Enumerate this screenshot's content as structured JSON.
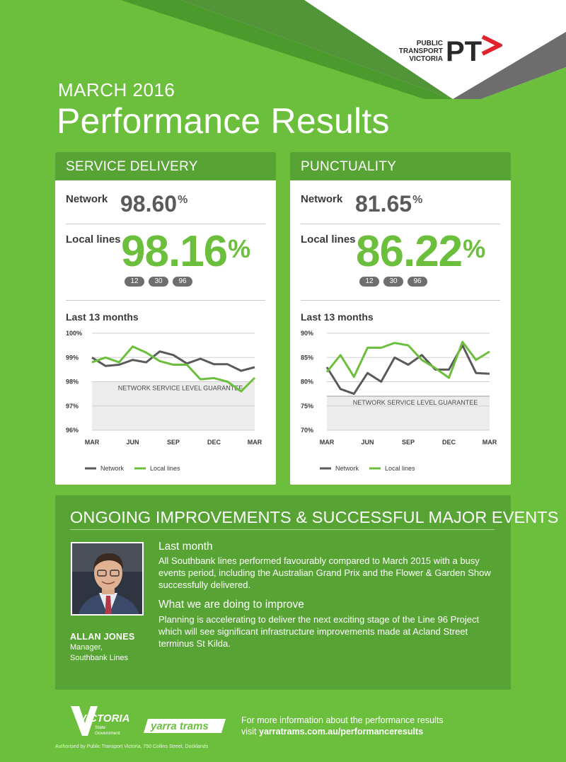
{
  "logo": {
    "ptv_lines": [
      "PUBLIC",
      "TRANSPORT",
      "VICTORIA"
    ],
    "ptv_mark": "PT"
  },
  "header": {
    "month": "MARCH 2016",
    "title": "Performance Results"
  },
  "service_delivery": {
    "heading": "SERVICE DELIVERY",
    "network_label": "Network",
    "network_value": "98.60",
    "local_label": "Local lines",
    "local_value": "98.16",
    "percent": "%",
    "lines": [
      "12",
      "30",
      "96"
    ],
    "months_label": "Last 13 months"
  },
  "punctuality": {
    "heading": "PUNCTUALITY",
    "network_label": "Network",
    "network_value": "81.65",
    "local_label": "Local lines",
    "local_value": "86.22",
    "percent": "%",
    "lines": [
      "12",
      "30",
      "96"
    ],
    "months_label": "Last 13 months"
  },
  "chart_data": [
    {
      "type": "line",
      "x_ticks": [
        "MAR",
        "JUN",
        "SEP",
        "DEC",
        "MAR"
      ],
      "y_ticks": [
        "100%",
        "99%",
        "98%",
        "97%",
        "96%"
      ],
      "ylim": [
        96,
        100
      ],
      "guarantee_label": "NETWORK SERVICE LEVEL GUARANTEE",
      "guarantee_value": 98,
      "legend": [
        "Network",
        "Local lines"
      ],
      "series": [
        {
          "name": "Network",
          "color": "#5a5a5a",
          "values": [
            99.0,
            98.65,
            98.7,
            98.9,
            98.8,
            99.25,
            99.1,
            98.75,
            98.95,
            98.72,
            98.72,
            98.45,
            98.6
          ]
        },
        {
          "name": "Local lines",
          "color": "#6cbf3c",
          "values": [
            98.8,
            99.0,
            98.8,
            99.45,
            99.2,
            98.85,
            98.7,
            98.7,
            98.1,
            98.15,
            98.0,
            97.6,
            98.16
          ]
        }
      ]
    },
    {
      "type": "line",
      "x_ticks": [
        "MAR",
        "JUN",
        "SEP",
        "DEC",
        "MAR"
      ],
      "y_ticks": [
        "90%",
        "85%",
        "80%",
        "75%",
        "70%"
      ],
      "ylim": [
        70,
        90
      ],
      "guarantee_label": "NETWORK SERVICE LEVEL GUARANTEE",
      "guarantee_value": 77,
      "legend": [
        "Network",
        "Local lines"
      ],
      "series": [
        {
          "name": "Network",
          "color": "#5a5a5a",
          "values": [
            83.0,
            78.5,
            77.5,
            81.8,
            80.0,
            85.0,
            83.5,
            85.5,
            82.5,
            82.5,
            87.5,
            81.8,
            81.65
          ]
        },
        {
          "name": "Local lines",
          "color": "#6cbf3c",
          "values": [
            82.0,
            85.5,
            81.0,
            87.0,
            87.0,
            88.0,
            87.5,
            84.5,
            82.8,
            80.8,
            88.2,
            84.5,
            86.22
          ]
        }
      ]
    }
  ],
  "improvements": {
    "title": "ONGOING IMPROVEMENTS & SUCCESSFUL MAJOR EVENTS",
    "person_name": "ALLAN JONES",
    "person_role": "Manager,",
    "person_org": "Southbank Lines",
    "last_month_head": "Last month",
    "last_month_body": "All Southbank lines performed favourably compared to March 2015 with a busy events period, including the Australian Grand Prix and the Flower & Garden Show successfully delivered.",
    "improve_head": "What we are doing to improve",
    "improve_body": "Planning is accelerating to deliver the next exciting stage of the Line 96 Project which will see significant infrastructure improvements made at Acland Street terminus St Kilda."
  },
  "footer": {
    "vic_name": "VICTORIA",
    "vic_sub1": "State",
    "vic_sub2": "Government",
    "yarra": "yarra trams",
    "info_line1": "For more information about the performance results",
    "info_prefix": "visit ",
    "info_url": "yarratrams.com.au/performanceresults",
    "authorised": "Authorised by Public Transport Victoria, 750 Collins Street, Docklands"
  },
  "colors": {
    "background": "#6cbf3c",
    "panel_head": "#57a435",
    "network_line": "#5a5a5a",
    "local_line": "#6cbf3c"
  }
}
